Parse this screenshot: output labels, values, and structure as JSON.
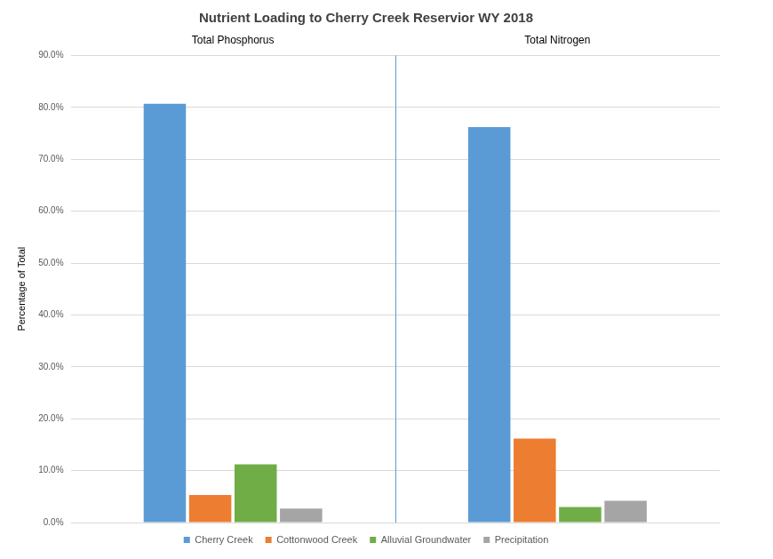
{
  "chart_data": {
    "type": "bar",
    "title": "Nutrient Loading to Cherry Creek Reservior WY 2018",
    "y_label": "Percentage of Total",
    "categories": [
      "Total Phosphorus",
      "Total Nitrogen"
    ],
    "series": [
      {
        "name": "Cherry Creek",
        "color": "#5B9BD5",
        "values": [
          80.7,
          76.2
        ]
      },
      {
        "name": "Cottonwood Creek",
        "color": "#ED7D31",
        "values": [
          5.3,
          16.2
        ]
      },
      {
        "name": "Alluvial Groundwater",
        "color": "#70AD47",
        "values": [
          11.2,
          3.0
        ]
      },
      {
        "name": "Precipitation",
        "color": "#A5A5A5",
        "values": [
          2.7,
          4.2
        ]
      }
    ],
    "ylim": [
      0,
      90
    ],
    "yticks": [
      {
        "value": 0,
        "label": "0.0%"
      },
      {
        "value": 10,
        "label": "10.0%"
      },
      {
        "value": 20,
        "label": "20.0%"
      },
      {
        "value": 30,
        "label": "30.0%"
      },
      {
        "value": 40,
        "label": "40.0%"
      },
      {
        "value": 50,
        "label": "50.0%"
      },
      {
        "value": 60,
        "label": "60.0%"
      },
      {
        "value": 70,
        "label": "70.0%"
      },
      {
        "value": 80,
        "label": "80.0%"
      },
      {
        "value": 90,
        "label": "90.0%"
      }
    ],
    "grid": true,
    "legend": "bottom"
  }
}
